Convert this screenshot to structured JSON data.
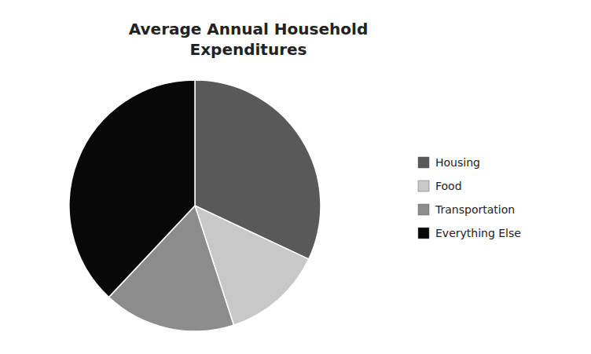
{
  "chart_data": {
    "type": "pie",
    "title": "Average Annual Household\nExpenditures",
    "categories": [
      "Housing",
      "Food",
      "Transportation",
      "Everything Else"
    ],
    "values": [
      32,
      13,
      17,
      38
    ],
    "colors": [
      "#595959",
      "#c8c8c8",
      "#8c8c8c",
      "#080808"
    ],
    "legend": "right"
  }
}
